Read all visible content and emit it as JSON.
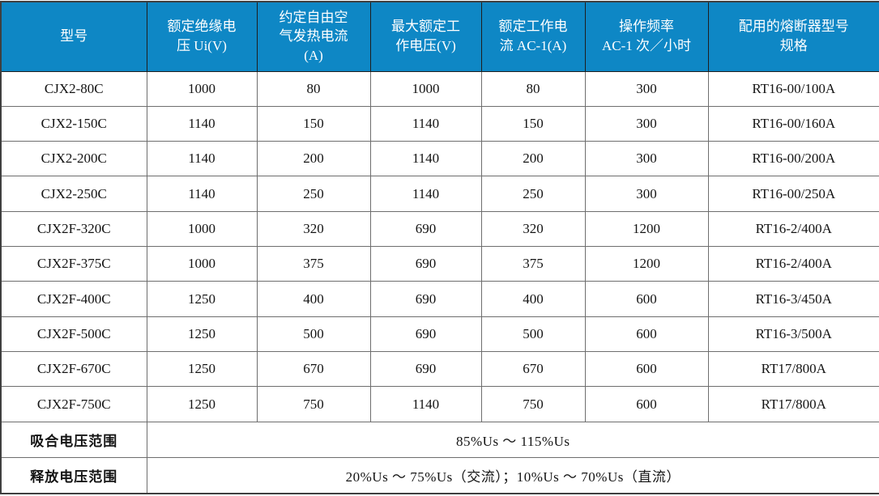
{
  "table": {
    "headers": [
      "型号",
      "额定绝缘电\n压 Ui(V)",
      "约定自由空\n气发热电流\n(A)",
      "最大额定工\n作电压(V)",
      "额定工作电\n流 AC-1(A)",
      "操作频率\nAC-1 次／小时",
      "配用的熔断器型号\n规格"
    ],
    "rows": [
      [
        "CJX2-80C",
        "1000",
        "80",
        "1000",
        "80",
        "300",
        "RT16-00/100A"
      ],
      [
        "CJX2-150C",
        "1140",
        "150",
        "1140",
        "150",
        "300",
        "RT16-00/160A"
      ],
      [
        "CJX2-200C",
        "1140",
        "200",
        "1140",
        "200",
        "300",
        "RT16-00/200A"
      ],
      [
        "CJX2-250C",
        "1140",
        "250",
        "1140",
        "250",
        "300",
        "RT16-00/250A"
      ],
      [
        "CJX2F-320C",
        "1000",
        "320",
        "690",
        "320",
        "1200",
        "RT16-2/400A"
      ],
      [
        "CJX2F-375C",
        "1000",
        "375",
        "690",
        "375",
        "1200",
        "RT16-2/400A"
      ],
      [
        "CJX2F-400C",
        "1250",
        "400",
        "690",
        "400",
        "600",
        "RT16-3/450A"
      ],
      [
        "CJX2F-500C",
        "1250",
        "500",
        "690",
        "500",
        "600",
        "RT16-3/500A"
      ],
      [
        "CJX2F-670C",
        "1250",
        "670",
        "690",
        "670",
        "600",
        "RT17/800A"
      ],
      [
        "CJX2F-750C",
        "1250",
        "750",
        "1140",
        "750",
        "600",
        "RT17/800A"
      ]
    ],
    "footer_rows": [
      {
        "label": "吸合电压范围",
        "value": "85%Us ～ 115%Us"
      },
      {
        "label": "释放电压范围",
        "value": "20%Us ～ 75%Us（交流）；10%Us ～ 70%Us（直流）"
      }
    ]
  },
  "colors": {
    "header_bg": "#0e87c5",
    "header_text": "#ffffff",
    "body_text": "#141414",
    "border": "#6e6e6e"
  }
}
